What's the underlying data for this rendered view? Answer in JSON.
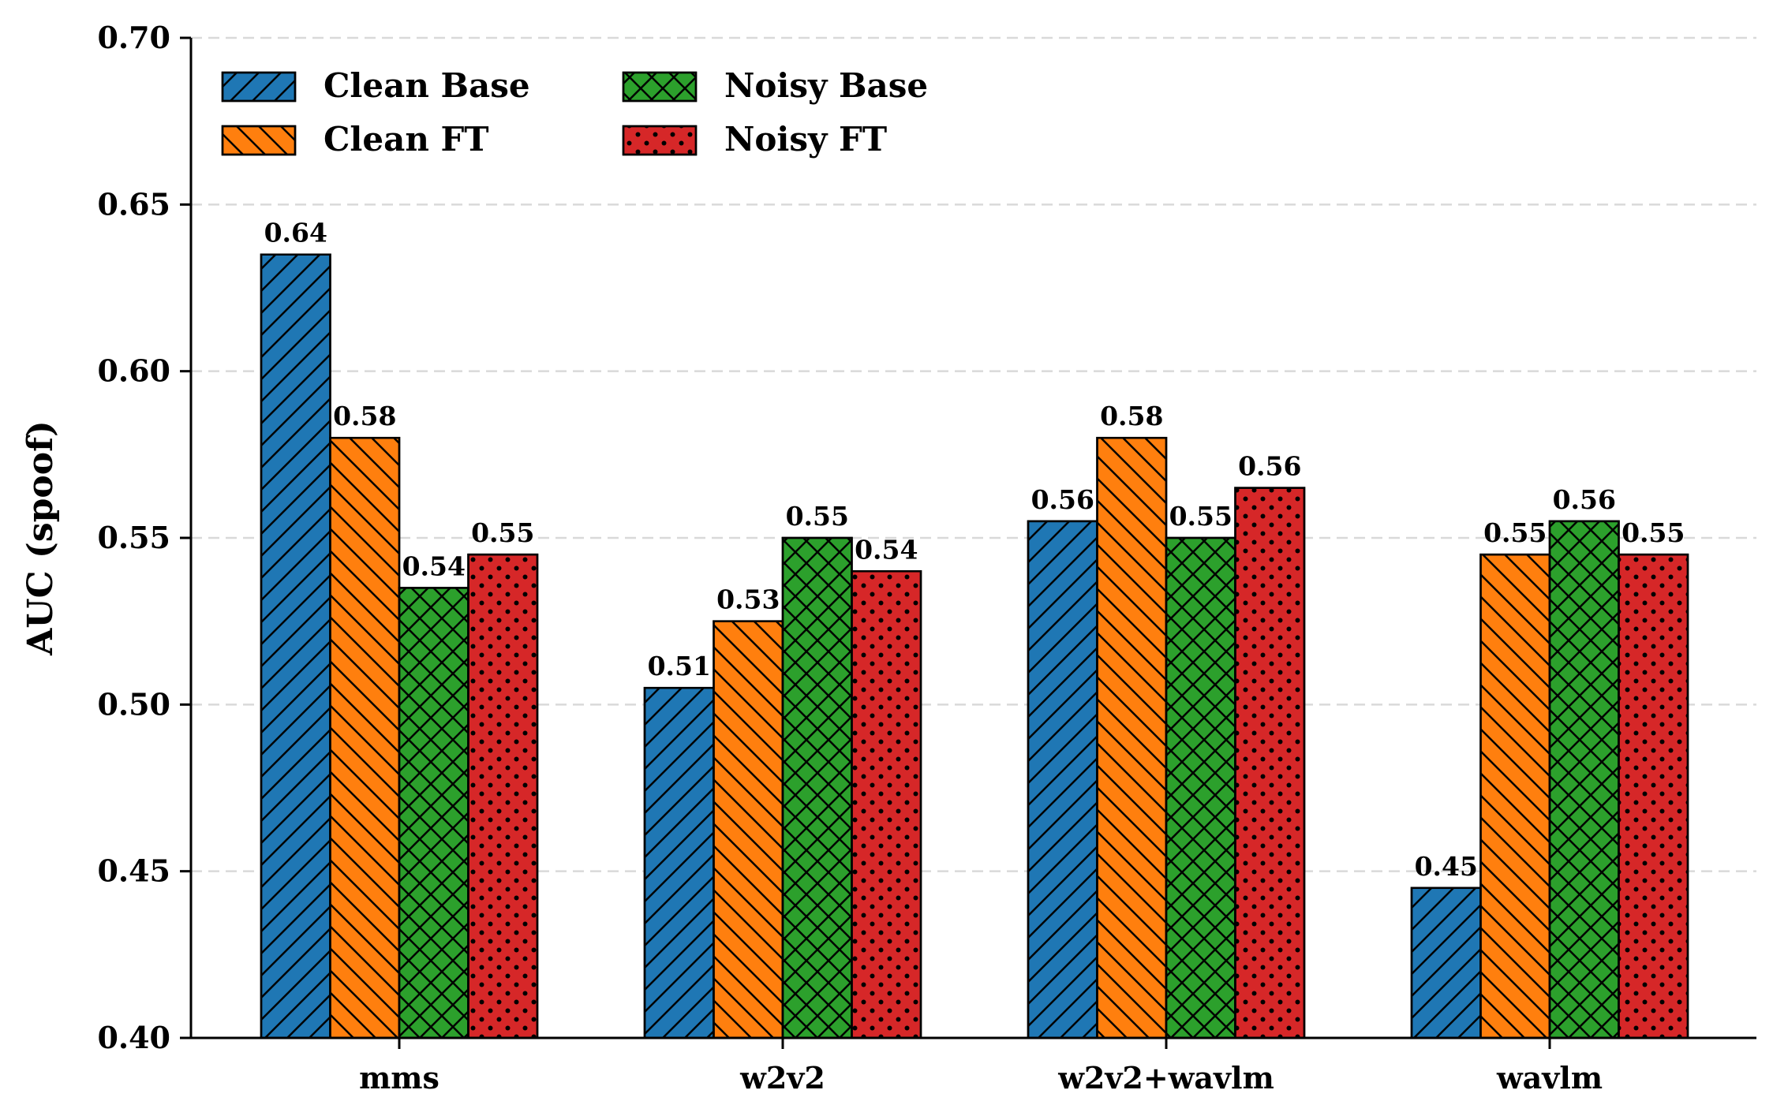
{
  "chart_data": {
    "type": "bar",
    "title": "",
    "xlabel": "",
    "ylabel": "AUC (spoof)",
    "ylim": [
      0.4,
      0.7
    ],
    "yticks": [
      "0.40",
      "0.45",
      "0.50",
      "0.55",
      "0.60",
      "0.65",
      "0.70"
    ],
    "grid": "horizontal dashed",
    "legend_position": "top-left",
    "categories": [
      "mms",
      "w2v2",
      "w2v2+wavlm",
      "wavlm"
    ],
    "series": [
      {
        "name": "Clean Base",
        "color": "#1f77b4",
        "hatch": "forward-diagonal",
        "values": [
          0.635,
          0.505,
          0.555,
          0.445
        ],
        "labels": [
          "0.64",
          "0.51",
          "0.56",
          "0.45"
        ]
      },
      {
        "name": "Clean FT",
        "color": "#ff7f0e",
        "hatch": "back-diagonal",
        "values": [
          0.58,
          0.525,
          0.58,
          0.545
        ],
        "labels": [
          "0.58",
          "0.53",
          "0.58",
          "0.55"
        ]
      },
      {
        "name": "Noisy Base",
        "color": "#2ca02c",
        "hatch": "crosshatch",
        "values": [
          0.535,
          0.55,
          0.55,
          0.555
        ],
        "labels": [
          "0.54",
          "0.55",
          "0.55",
          "0.56"
        ]
      },
      {
        "name": "Noisy FT",
        "color": "#d62728",
        "hatch": "dots",
        "values": [
          0.545,
          0.54,
          0.565,
          0.545
        ],
        "labels": [
          "0.55",
          "0.54",
          "0.56",
          "0.55"
        ]
      }
    ]
  }
}
